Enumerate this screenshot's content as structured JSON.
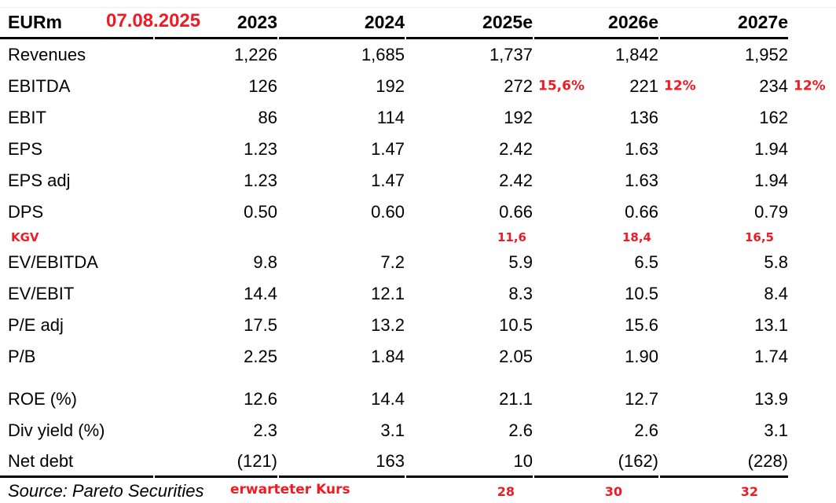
{
  "table": {
    "unit_header": "EURm",
    "date_annotation": "07.08.2025",
    "columns": [
      "2023",
      "2024",
      "2025e",
      "2026e",
      "2027e"
    ],
    "rows": [
      {
        "label": "Revenues",
        "values": [
          "1,226",
          "1,685",
          "1,737",
          "1,842",
          "1,952"
        ]
      },
      {
        "label": "EBITDA",
        "values": [
          "126",
          "192",
          "272",
          "221",
          "234"
        ],
        "growth_annotations": [
          "",
          "",
          "15,6%",
          "12%",
          "12%"
        ]
      },
      {
        "label": "EBIT",
        "values": [
          "86",
          "114",
          "192",
          "136",
          "162"
        ]
      },
      {
        "label": "EPS",
        "values": [
          "1.23",
          "1.47",
          "2.42",
          "1.63",
          "1.94"
        ]
      },
      {
        "label": "EPS adj",
        "values": [
          "1.23",
          "1.47",
          "2.42",
          "1.63",
          "1.94"
        ]
      },
      {
        "label": "DPS",
        "values": [
          "0.50",
          "0.60",
          "0.66",
          "0.66",
          "0.79"
        ]
      },
      {
        "label": "EV/EBITDA",
        "values": [
          "9.8",
          "7.2",
          "5.9",
          "6.5",
          "5.8"
        ]
      },
      {
        "label": "EV/EBIT",
        "values": [
          "14.4",
          "12.1",
          "8.3",
          "10.5",
          "8.4"
        ]
      },
      {
        "label": "P/E adj",
        "values": [
          "17.5",
          "13.2",
          "10.5",
          "15.6",
          "13.1"
        ]
      },
      {
        "label": "P/B",
        "values": [
          "2.25",
          "1.84",
          "2.05",
          "1.90",
          "1.74"
        ]
      },
      {
        "label": "ROE (%)",
        "values": [
          "12.6",
          "14.4",
          "21.1",
          "12.7",
          "13.9"
        ]
      },
      {
        "label": "Div yield (%)",
        "values": [
          "2.3",
          "3.1",
          "2.6",
          "2.6",
          "3.1"
        ]
      },
      {
        "label": "Net debt",
        "values": [
          "(121)",
          "163",
          "10",
          "(162)",
          "(228)"
        ]
      }
    ],
    "kgv_annotation": {
      "label": "KGV",
      "values": [
        "11,6",
        "18,4",
        "16,5"
      ]
    },
    "expected_price_annotation": {
      "label": "erwarteter Kurs",
      "values": [
        "28",
        "30",
        "32"
      ]
    },
    "source": "Source: Pareto Securities"
  },
  "colors": {
    "annotation_red": "#ed1c24",
    "rule_black": "#000000"
  }
}
